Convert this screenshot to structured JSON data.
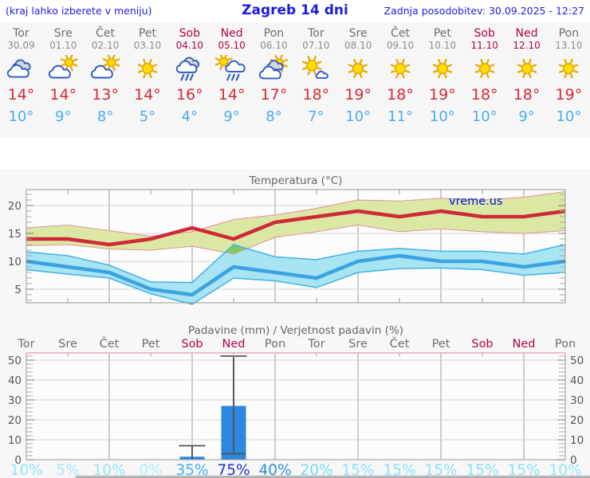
{
  "header": {
    "left_note": "(kraj lahko izberete v meniju)",
    "title": "Zagreb 14 dni",
    "updated": "Zadnja posodobitev: 30.09.2025 - 12:27"
  },
  "forecast": {
    "days": [
      {
        "name": "Tor",
        "date": "30.09",
        "weekend": false,
        "icon": "cloudy",
        "high": "14°",
        "low": "10°"
      },
      {
        "name": "Sre",
        "date": "01.10",
        "weekend": false,
        "icon": "partly-sunny",
        "high": "14°",
        "low": "9°"
      },
      {
        "name": "Čet",
        "date": "02.10",
        "weekend": false,
        "icon": "partly-sunny",
        "high": "13°",
        "low": "8°"
      },
      {
        "name": "Pet",
        "date": "03.10",
        "weekend": false,
        "icon": "sunny",
        "high": "14°",
        "low": "5°"
      },
      {
        "name": "Sob",
        "date": "04.10",
        "weekend": true,
        "icon": "rain",
        "high": "16°",
        "low": "4°"
      },
      {
        "name": "Ned",
        "date": "05.10",
        "weekend": true,
        "icon": "sun-rain",
        "high": "14°",
        "low": "9°"
      },
      {
        "name": "Pon",
        "date": "06.10",
        "weekend": false,
        "icon": "mostly-cloudy",
        "high": "17°",
        "low": "8°"
      },
      {
        "name": "Tor",
        "date": "07.10",
        "weekend": false,
        "icon": "partly-cloudy",
        "high": "18°",
        "low": "7°"
      },
      {
        "name": "Sre",
        "date": "08.10",
        "weekend": false,
        "icon": "sunny",
        "high": "19°",
        "low": "10°"
      },
      {
        "name": "Čet",
        "date": "09.10",
        "weekend": false,
        "icon": "sunny",
        "high": "18°",
        "low": "11°"
      },
      {
        "name": "Pet",
        "date": "10.10",
        "weekend": false,
        "icon": "sunny",
        "high": "19°",
        "low": "10°"
      },
      {
        "name": "Sob",
        "date": "11.10",
        "weekend": true,
        "icon": "sunny",
        "high": "18°",
        "low": "10°"
      },
      {
        "name": "Ned",
        "date": "12.10",
        "weekend": true,
        "icon": "sunny",
        "high": "18°",
        "low": "9°"
      },
      {
        "name": "Pon",
        "date": "13.10",
        "weekend": false,
        "icon": "sunny",
        "high": "19°",
        "low": "10°"
      }
    ]
  },
  "chart_data": [
    {
      "type": "line",
      "title": "Temperatura (°C)",
      "watermark": "vreme.us",
      "categories": [
        "Tor 30.09",
        "Sre 01.10",
        "Čet 02.10",
        "Pet 03.10",
        "Sob 04.10",
        "Ned 05.10",
        "Pon 06.10",
        "Tor 07.10",
        "Sre 08.10",
        "Čet 09.10",
        "Pet 10.10",
        "Sob 11.10",
        "Ned 12.10",
        "Pon 13.10"
      ],
      "ylim": [
        2.5,
        23
      ],
      "yticks": [
        5,
        10,
        15,
        20
      ],
      "grid": true,
      "series": [
        {
          "name": "T max",
          "color": "#cd2937",
          "values": [
            14,
            14,
            13,
            14,
            16,
            14,
            17,
            18,
            19,
            18,
            19,
            18,
            18,
            19
          ]
        },
        {
          "name": "T min",
          "color": "#3aa3e3",
          "values": [
            10,
            9,
            8,
            5,
            4,
            9,
            8,
            7,
            10,
            11,
            10,
            10,
            9,
            10
          ]
        },
        {
          "name": "T max range upper",
          "color": "#dbe8a4",
          "values": [
            16,
            16.5,
            15.5,
            14.5,
            15.3,
            17.5,
            18.3,
            19.5,
            21,
            20.8,
            21.3,
            21,
            21.5,
            22.5
          ]
        },
        {
          "name": "T max range lower",
          "color": "#dbe8a4",
          "values": [
            12.8,
            13,
            12.2,
            12,
            12.7,
            11.3,
            14.3,
            15.3,
            16.5,
            15.3,
            15.8,
            15.3,
            15,
            15.5
          ]
        },
        {
          "name": "T min range upper",
          "color": "#a8e4f2",
          "values": [
            11.7,
            11,
            9.3,
            6.3,
            6.2,
            13,
            10.8,
            10.3,
            11.8,
            12.3,
            11.8,
            11.8,
            11.3,
            13
          ]
        },
        {
          "name": "T min range lower",
          "color": "#a8e4f2",
          "values": [
            8.5,
            7.7,
            7,
            4.2,
            2.3,
            7,
            6.5,
            5.3,
            8,
            8.7,
            8.8,
            8.5,
            7.5,
            8
          ]
        }
      ],
      "band_colors": {
        "max_band": "#dbe8a4",
        "max_band_edge": "#e49098",
        "min_band": "#a8e4f2",
        "min_band_edge": "#41b2e8",
        "overlap": "#7ecb5f"
      }
    },
    {
      "type": "bar",
      "title": "Padavine (mm) / Verjetnost padavin (%)",
      "categories": [
        "Tor",
        "Sre",
        "Čet",
        "Pet",
        "Sob",
        "Ned",
        "Pon",
        "Tor",
        "Sre",
        "Čet",
        "Pet",
        "Sob",
        "Ned",
        "Pon"
      ],
      "weekend": [
        false,
        false,
        false,
        false,
        true,
        true,
        false,
        false,
        false,
        false,
        false,
        true,
        true,
        false
      ],
      "precip_mm": [
        0,
        0,
        0,
        0,
        1.5,
        27,
        0,
        0,
        0,
        0,
        0,
        0,
        0,
        0
      ],
      "whisker_max_mm": [
        0,
        0,
        0,
        0,
        7,
        52,
        0,
        0,
        0,
        0,
        0,
        0,
        0,
        0
      ],
      "whisker_base_mm": [
        0,
        0,
        0,
        0,
        0,
        3,
        0,
        0,
        0,
        0,
        0,
        0,
        0,
        0
      ],
      "probabilities": [
        "10%",
        "5%",
        "10%",
        "0%",
        "35%",
        "75%",
        "40%",
        "20%",
        "15%",
        "15%",
        "15%",
        "15%",
        "15%",
        "10%"
      ],
      "probability_colors": [
        "#96e6fb",
        "#a2eafc",
        "#96e6fb",
        "#aceefd",
        "#41b0ee",
        "#2531cf",
        "#2e8de6",
        "#79d8f7",
        "#8bdff9",
        "#8bdff9",
        "#8bdff9",
        "#8bdff9",
        "#8bdff9",
        "#96e6fb"
      ],
      "ylim": [
        0,
        53.6
      ],
      "yticks": [
        0,
        10,
        20,
        30,
        40,
        50
      ],
      "grid": true,
      "bar_color": "#2b87e0",
      "whisker_color": "#555555"
    }
  ],
  "colors": {
    "weekend": "#b5004b",
    "weekday": "#6e6e6e",
    "high_temp": "#d32b39",
    "low_temp": "#4aacee",
    "header_blue": "#1c1ce0",
    "chart_title": "#666666"
  }
}
